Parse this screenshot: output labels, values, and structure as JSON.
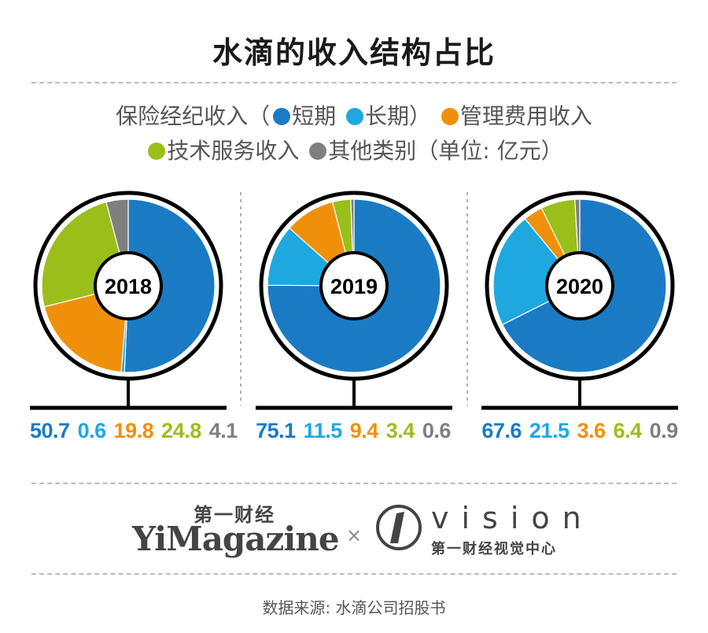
{
  "title": "水滴的收入结构占比",
  "legend": {
    "line1_prefix": "保险经纪收入（",
    "short_term": "短期",
    "long_term": "长期）",
    "management_fee": "管理费用收入",
    "tech_service": "技术服务收入",
    "other": "其他类别（单位: 亿元）"
  },
  "colors": {
    "short_term": "#1a7bc4",
    "long_term": "#1fa8e0",
    "management_fee": "#f0900a",
    "tech_service": "#9bbf1a",
    "other": "#7f7f7f"
  },
  "chart_data": [
    {
      "type": "pie",
      "year": "2018",
      "categories": [
        "短期",
        "长期",
        "管理费用收入",
        "技术服务收入",
        "其他类别"
      ],
      "values": [
        50.7,
        0.6,
        19.8,
        24.8,
        4.1
      ],
      "labels": [
        "50.7",
        "0.6",
        "19.8",
        "24.8",
        "4.1"
      ]
    },
    {
      "type": "pie",
      "year": "2019",
      "categories": [
        "短期",
        "长期",
        "管理费用收入",
        "技术服务收入",
        "其他类别"
      ],
      "values": [
        75.1,
        11.5,
        9.4,
        3.4,
        0.6
      ],
      "labels": [
        "75.1",
        "11.5",
        "9.4",
        "3.4",
        "0.6"
      ]
    },
    {
      "type": "pie",
      "year": "2020",
      "categories": [
        "短期",
        "长期",
        "管理费用收入",
        "技术服务收入",
        "其他类别"
      ],
      "values": [
        67.6,
        21.5,
        3.6,
        6.4,
        0.9
      ],
      "labels": [
        "67.6",
        "21.5",
        "3.6",
        "6.4",
        "0.9"
      ]
    }
  ],
  "footer": {
    "yimagazine_cn": "第一财经",
    "yimagazine_en": "YiMagazine",
    "cross": "×",
    "vision_word": "vision",
    "vision_sub": "第一财经视觉中心",
    "source": "数据来源: 水滴公司招股书"
  }
}
